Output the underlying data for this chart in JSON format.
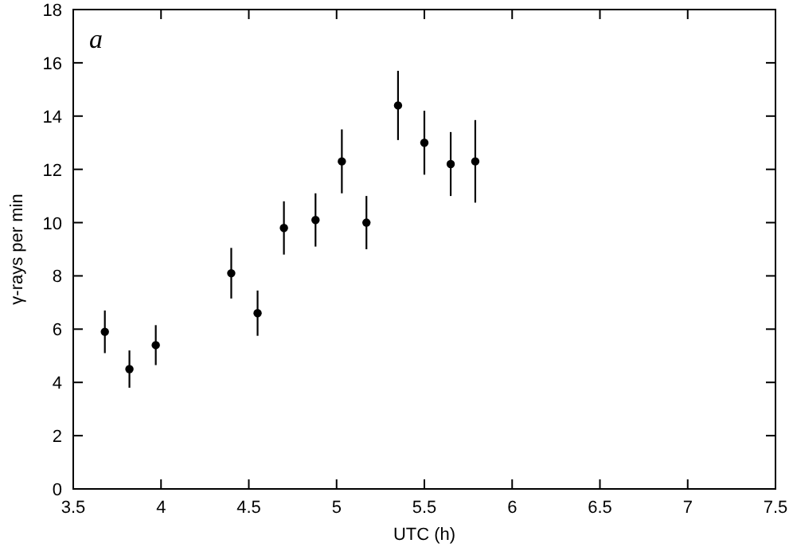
{
  "chart_data": {
    "type": "scatter",
    "xlabel": "UTC (h)",
    "ylabel": "γ-rays per min",
    "annotations": [
      "a"
    ],
    "x": [
      3.68,
      3.82,
      3.97,
      4.4,
      4.55,
      4.7,
      4.88,
      5.03,
      5.17,
      5.35,
      5.5,
      5.65,
      5.79
    ],
    "values": [
      5.9,
      4.5,
      5.4,
      8.1,
      6.6,
      9.8,
      10.1,
      12.3,
      10.0,
      14.4,
      13.0,
      12.2,
      12.3
    ],
    "errors": [
      0.8,
      0.7,
      0.75,
      0.95,
      0.85,
      1.0,
      1.0,
      1.2,
      1.0,
      1.3,
      1.2,
      1.2,
      1.55
    ],
    "color": "#000000",
    "marker": "circle",
    "xlim": [
      3.5,
      7.5
    ],
    "xticks": [
      3.5,
      4,
      4.5,
      5,
      5.5,
      6,
      6.5,
      7,
      7.5
    ],
    "ylim": [
      0,
      18
    ],
    "yticks": [
      0,
      2,
      4,
      6,
      8,
      10,
      12,
      14,
      16,
      18
    ]
  }
}
